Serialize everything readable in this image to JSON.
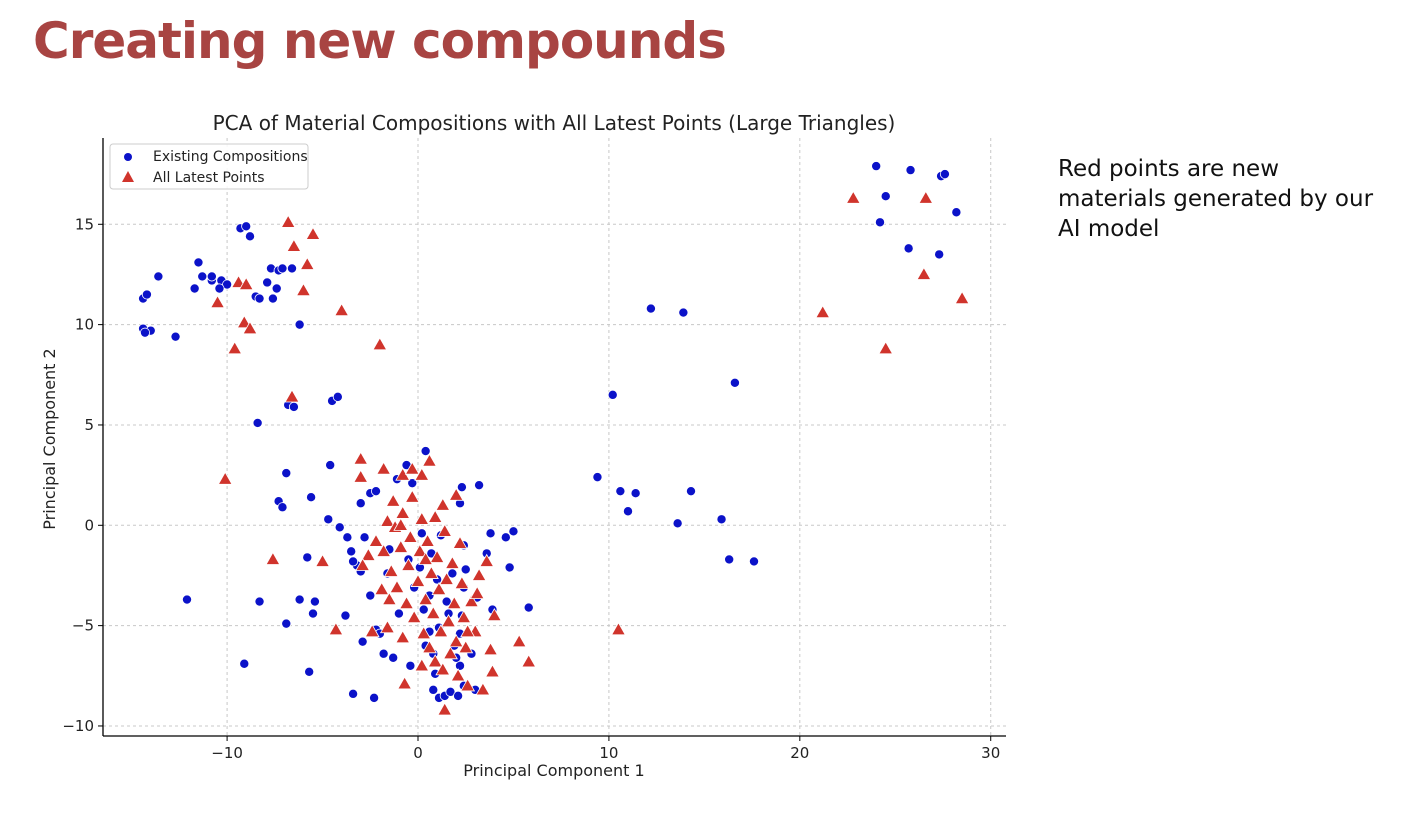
{
  "slide": {
    "title": "Creating new compounds",
    "note": "Red points are new materials generated by our AI model"
  },
  "chart_data": {
    "type": "scatter",
    "title": "PCA of Material Compositions with All Latest Points (Large Triangles)",
    "xlabel": "Principal Component 1",
    "ylabel": "Principal Component 2",
    "xlim": [
      -16.5,
      30.8
    ],
    "ylim": [
      -10.5,
      19.3
    ],
    "xticks": [
      -10,
      0,
      10,
      20,
      30
    ],
    "yticks": [
      -10,
      -5,
      0,
      5,
      10,
      15
    ],
    "grid": true,
    "legend_position": "top-left",
    "colors": {
      "existing": "#0b12c9",
      "latest": "#d0342c",
      "title": "#a84442"
    },
    "series": [
      {
        "name": "Existing Compositions",
        "marker": "circle",
        "points": [
          [
            -14.4,
            11.3
          ],
          [
            -14.2,
            11.5
          ],
          [
            -13.6,
            12.4
          ],
          [
            -14.4,
            9.8
          ],
          [
            -14.0,
            9.7
          ],
          [
            -12.7,
            9.4
          ],
          [
            -14.3,
            9.6
          ],
          [
            -11.7,
            11.8
          ],
          [
            -11.5,
            13.1
          ],
          [
            -11.3,
            12.4
          ],
          [
            -10.8,
            12.2
          ],
          [
            -10.8,
            12.4
          ],
          [
            -10.3,
            12.2
          ],
          [
            -10.0,
            12.0
          ],
          [
            -10.4,
            11.8
          ],
          [
            -9.3,
            14.8
          ],
          [
            -9.0,
            14.9
          ],
          [
            -8.8,
            14.4
          ],
          [
            -8.5,
            11.4
          ],
          [
            -8.3,
            11.3
          ],
          [
            -7.9,
            12.1
          ],
          [
            -7.6,
            11.3
          ],
          [
            -7.4,
            11.8
          ],
          [
            -7.7,
            12.8
          ],
          [
            -7.3,
            12.7
          ],
          [
            -7.1,
            12.8
          ],
          [
            -6.6,
            12.8
          ],
          [
            -6.2,
            10.0
          ],
          [
            -6.8,
            6.0
          ],
          [
            -6.5,
            5.9
          ],
          [
            -6.9,
            2.6
          ],
          [
            -8.4,
            5.1
          ],
          [
            -4.5,
            6.2
          ],
          [
            -4.2,
            6.4
          ],
          [
            -4.6,
            3.0
          ],
          [
            -5.6,
            1.4
          ],
          [
            -7.3,
            1.2
          ],
          [
            -7.1,
            0.9
          ],
          [
            -12.1,
            -3.7
          ],
          [
            -9.1,
            -6.9
          ],
          [
            -8.3,
            -3.8
          ],
          [
            -6.2,
            -3.7
          ],
          [
            -5.4,
            -3.8
          ],
          [
            -5.5,
            -4.4
          ],
          [
            -5.8,
            -1.6
          ],
          [
            -6.9,
            -4.9
          ],
          [
            -5.7,
            -7.3
          ],
          [
            -4.7,
            0.3
          ],
          [
            -4.1,
            -0.1
          ],
          [
            -3.7,
            -0.6
          ],
          [
            -3.5,
            -1.3
          ],
          [
            -3.2,
            -2.0
          ],
          [
            -3.0,
            -2.3
          ],
          [
            -3.4,
            -1.8
          ],
          [
            -3.0,
            1.1
          ],
          [
            -2.8,
            -0.6
          ],
          [
            -2.5,
            1.6
          ],
          [
            -2.2,
            1.7
          ],
          [
            -2.5,
            -3.5
          ],
          [
            -2.2,
            -5.2
          ],
          [
            -2.0,
            -5.4
          ],
          [
            -1.8,
            -6.4
          ],
          [
            -1.3,
            -6.6
          ],
          [
            -1.5,
            -1.2
          ],
          [
            -1.6,
            -2.4
          ],
          [
            -1.1,
            2.3
          ],
          [
            -0.6,
            3.0
          ],
          [
            -0.3,
            2.1
          ],
          [
            0.4,
            3.7
          ],
          [
            -0.5,
            -1.7
          ],
          [
            0.2,
            -0.4
          ],
          [
            0.1,
            -2.1
          ],
          [
            -0.2,
            -3.1
          ],
          [
            0.3,
            -4.2
          ],
          [
            0.6,
            -5.3
          ],
          [
            0.8,
            -6.4
          ],
          [
            0.9,
            -7.4
          ],
          [
            0.8,
            -8.2
          ],
          [
            1.1,
            -8.6
          ],
          [
            1.4,
            -8.5
          ],
          [
            1.7,
            -8.3
          ],
          [
            2.1,
            -8.5
          ],
          [
            2.4,
            -8.0
          ],
          [
            2.2,
            -7.0
          ],
          [
            2.0,
            -6.6
          ],
          [
            2.2,
            -5.4
          ],
          [
            2.3,
            -4.5
          ],
          [
            2.4,
            -3.1
          ],
          [
            2.5,
            -2.2
          ],
          [
            2.4,
            -1.0
          ],
          [
            2.2,
            1.1
          ],
          [
            2.3,
            1.9
          ],
          [
            3.2,
            2.0
          ],
          [
            1.8,
            -2.4
          ],
          [
            1.5,
            -3.8
          ],
          [
            1.0,
            -2.7
          ],
          [
            0.7,
            -1.4
          ],
          [
            1.2,
            -0.5
          ],
          [
            1.6,
            -4.4
          ],
          [
            1.9,
            -6.0
          ],
          [
            1.1,
            -5.1
          ],
          [
            0.6,
            -3.5
          ],
          [
            3.8,
            -0.4
          ],
          [
            3.6,
            -1.4
          ],
          [
            3.9,
            -4.2
          ],
          [
            3.1,
            -3.6
          ],
          [
            4.6,
            -0.6
          ],
          [
            5.0,
            -0.3
          ],
          [
            4.8,
            -2.1
          ],
          [
            5.8,
            -4.1
          ],
          [
            3.0,
            -8.2
          ],
          [
            2.8,
            -6.4
          ],
          [
            -3.4,
            -8.4
          ],
          [
            -2.3,
            -8.6
          ],
          [
            -3.8,
            -4.5
          ],
          [
            -2.9,
            -5.8
          ],
          [
            -0.4,
            -7.0
          ],
          [
            -1.0,
            -4.4
          ],
          [
            0.4,
            -6.0
          ],
          [
            9.4,
            2.4
          ],
          [
            10.2,
            6.5
          ],
          [
            10.6,
            1.7
          ],
          [
            11.0,
            0.7
          ],
          [
            11.4,
            1.6
          ],
          [
            12.2,
            10.8
          ],
          [
            13.6,
            0.1
          ],
          [
            13.9,
            10.6
          ],
          [
            14.3,
            1.7
          ],
          [
            15.9,
            0.3
          ],
          [
            16.3,
            -1.7
          ],
          [
            16.6,
            7.1
          ],
          [
            17.6,
            -1.8
          ],
          [
            24.0,
            17.9
          ],
          [
            24.2,
            15.1
          ],
          [
            24.5,
            16.4
          ],
          [
            25.7,
            13.8
          ],
          [
            25.8,
            17.7
          ],
          [
            27.3,
            13.5
          ],
          [
            27.4,
            17.4
          ],
          [
            27.6,
            17.5
          ],
          [
            28.2,
            15.6
          ]
        ]
      },
      {
        "name": "All Latest Points",
        "marker": "triangle",
        "points": [
          [
            -6.8,
            15.1
          ],
          [
            -6.5,
            13.9
          ],
          [
            -5.5,
            14.5
          ],
          [
            -5.8,
            13.0
          ],
          [
            -6.0,
            11.7
          ],
          [
            -4.0,
            10.7
          ],
          [
            -2.0,
            9.0
          ],
          [
            -9.4,
            12.1
          ],
          [
            -9.0,
            12.0
          ],
          [
            -10.5,
            11.1
          ],
          [
            -9.1,
            10.1
          ],
          [
            -8.8,
            9.8
          ],
          [
            -9.6,
            8.8
          ],
          [
            -6.6,
            6.4
          ],
          [
            -10.1,
            2.3
          ],
          [
            -7.6,
            -1.7
          ],
          [
            -5.0,
            -1.8
          ],
          [
            -4.3,
            -5.2
          ],
          [
            -3.0,
            3.3
          ],
          [
            -3.0,
            2.4
          ],
          [
            -1.8,
            2.8
          ],
          [
            -0.8,
            2.5
          ],
          [
            -0.3,
            2.8
          ],
          [
            0.2,
            2.5
          ],
          [
            0.6,
            3.2
          ],
          [
            -2.2,
            -0.8
          ],
          [
            -1.8,
            -1.3
          ],
          [
            -1.6,
            0.2
          ],
          [
            -1.4,
            -2.3
          ],
          [
            -1.3,
            1.2
          ],
          [
            -1.1,
            -3.1
          ],
          [
            -0.9,
            -1.1
          ],
          [
            -0.8,
            0.6
          ],
          [
            -0.6,
            -3.9
          ],
          [
            -0.5,
            -2.0
          ],
          [
            -0.4,
            -0.6
          ],
          [
            -0.3,
            1.4
          ],
          [
            -0.2,
            -4.6
          ],
          [
            0.0,
            -2.8
          ],
          [
            0.1,
            -1.3
          ],
          [
            0.2,
            0.3
          ],
          [
            0.3,
            -5.4
          ],
          [
            0.4,
            -3.7
          ],
          [
            0.5,
            -0.8
          ],
          [
            0.6,
            -6.1
          ],
          [
            0.7,
            -2.4
          ],
          [
            0.8,
            -4.4
          ],
          [
            0.9,
            -6.8
          ],
          [
            1.0,
            -1.6
          ],
          [
            1.1,
            -3.2
          ],
          [
            1.2,
            -5.3
          ],
          [
            1.3,
            -7.2
          ],
          [
            1.4,
            -0.3
          ],
          [
            1.5,
            -2.7
          ],
          [
            1.6,
            -4.8
          ],
          [
            1.7,
            -6.4
          ],
          [
            1.8,
            -1.9
          ],
          [
            1.9,
            -3.9
          ],
          [
            2.0,
            -5.8
          ],
          [
            2.1,
            -7.5
          ],
          [
            2.2,
            -0.9
          ],
          [
            2.3,
            -2.9
          ],
          [
            2.4,
            -4.6
          ],
          [
            2.5,
            -6.1
          ],
          [
            2.6,
            -8.0
          ],
          [
            2.8,
            -3.8
          ],
          [
            3.0,
            -5.3
          ],
          [
            3.2,
            -2.5
          ],
          [
            3.4,
            -8.2
          ],
          [
            3.6,
            -1.8
          ],
          [
            3.8,
            -6.2
          ],
          [
            3.9,
            -7.3
          ],
          [
            4.0,
            -4.5
          ],
          [
            -2.4,
            -5.3
          ],
          [
            -1.6,
            -5.1
          ],
          [
            -0.8,
            -5.6
          ],
          [
            0.2,
            -7.0
          ],
          [
            -0.7,
            -7.9
          ],
          [
            1.4,
            -9.2
          ],
          [
            -2.6,
            -1.5
          ],
          [
            -2.9,
            -2.0
          ],
          [
            -1.2,
            -0.1
          ],
          [
            0.9,
            0.4
          ],
          [
            2.0,
            1.5
          ],
          [
            1.3,
            1.0
          ],
          [
            -0.9,
            0.0
          ],
          [
            -1.9,
            -3.2
          ],
          [
            -1.5,
            -3.7
          ],
          [
            0.4,
            -1.7
          ],
          [
            2.6,
            -5.3
          ],
          [
            3.1,
            -3.4
          ],
          [
            5.3,
            -5.8
          ],
          [
            5.8,
            -6.8
          ],
          [
            10.5,
            -5.2
          ],
          [
            21.2,
            10.6
          ],
          [
            22.8,
            16.3
          ],
          [
            24.5,
            8.8
          ],
          [
            26.5,
            12.5
          ],
          [
            26.6,
            16.3
          ],
          [
            28.5,
            11.3
          ]
        ]
      }
    ]
  }
}
